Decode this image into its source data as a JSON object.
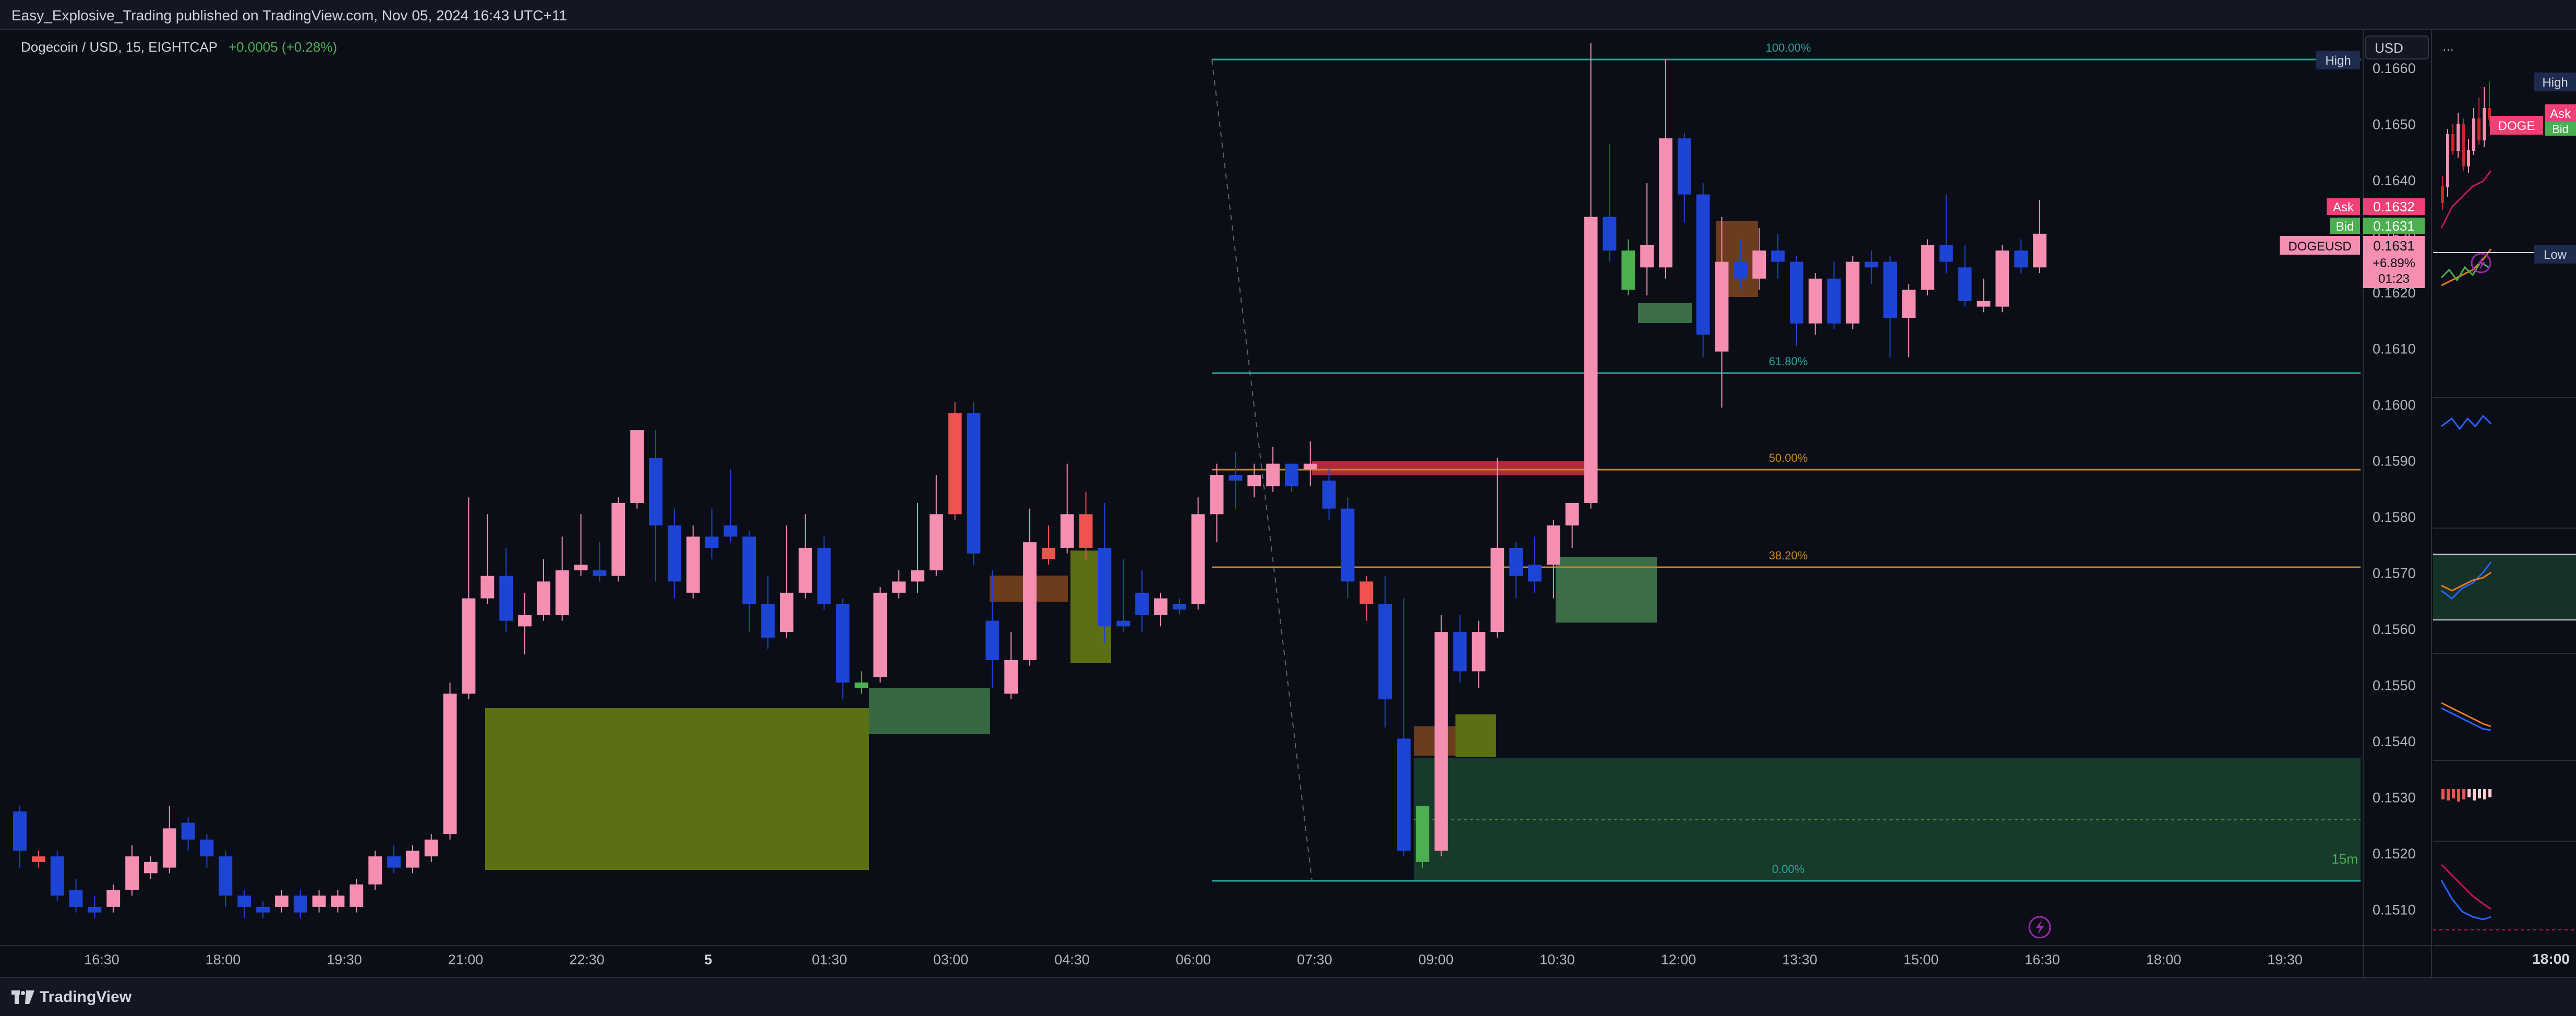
{
  "publish_line": "Easy_Explosive_Trading published on TradingView.com, Nov 05, 2024 16:43 UTC+11",
  "footer_brand": "TradingView",
  "legend": {
    "symbol_line": "Dogecoin / USD, 15, EIGHTCAP",
    "change": "+0.0005 (+0.28%)"
  },
  "currency_button": "USD",
  "colors": {
    "up": "#f48fb1",
    "down": "#1e44d6",
    "up_alt": "#ef5350",
    "down_alt": "#4caf50",
    "fib": "#26a69a",
    "fib_mid": "#c7872c",
    "zone_olive": "#5b7013",
    "zone_green": "#3b6e46",
    "background": "#0b0e17",
    "ask": "#f23f76",
    "bid": "#4caf50"
  },
  "badges": {
    "high": "High",
    "low": "Low",
    "ask_label": "Ask",
    "ask_value": "0.1632",
    "bid_label": "Bid",
    "bid_value": "0.1631",
    "symbol_label": "DOGEUSD",
    "last_value": "0.1631",
    "last_change": "+6.89%",
    "countdown": "01:23"
  },
  "fib_labels": {
    "f100": "100.00%",
    "f618": "61.80%",
    "f50": "50.00%",
    "f382": "38.20%",
    "f0": "0.00%"
  },
  "interval_badge": "15m",
  "side_panel": {
    "ask": "Ask",
    "bid": "Bid",
    "symbol_short": "DOGE",
    "high": "High",
    "low": "Low",
    "time_label": "18:00"
  },
  "chart_data": {
    "type": "candlestick",
    "title": "Dogecoin / USD, 15, EIGHTCAP",
    "x_axis_ticks": [
      "16:30",
      "18:00",
      "19:30",
      "21:00",
      "22:30",
      "5",
      "01:30",
      "03:00",
      "04:30",
      "06:00",
      "07:30",
      "09:00",
      "10:30",
      "12:00",
      "13:30",
      "15:00",
      "16:30",
      "18:00",
      "19:30"
    ],
    "y_axis_ticks": [
      "0.1660",
      "0.1650",
      "0.1640",
      "0.1630",
      "0.1620",
      "0.1610",
      "0.1600",
      "0.1590",
      "0.1580",
      "0.1570",
      "0.1560",
      "0.1550",
      "0.1540",
      "0.1530",
      "0.1520",
      "0.1510"
    ],
    "ylim": [
      0.1505,
      0.1665
    ],
    "candles": [
      [
        0.15275,
        0.15285,
        0.15205,
        0.15175,
        "down"
      ],
      [
        0.15195,
        0.15205,
        0.15185,
        0.15175,
        "alt"
      ],
      [
        0.15195,
        0.15205,
        0.15125,
        0.15115,
        "down"
      ],
      [
        0.15135,
        0.15155,
        0.15105,
        0.15095,
        "down"
      ],
      [
        0.15105,
        0.15125,
        0.15095,
        0.15085,
        "down"
      ],
      [
        0.15105,
        0.15145,
        0.15135,
        0.15095,
        "up"
      ],
      [
        0.15135,
        0.15215,
        0.15195,
        0.15125,
        "up"
      ],
      [
        0.15165,
        0.15195,
        0.15185,
        0.15155,
        "up"
      ],
      [
        0.15175,
        0.15285,
        0.15245,
        0.15165,
        "up"
      ],
      [
        0.15255,
        0.15265,
        0.15225,
        0.15205,
        "down"
      ],
      [
        0.15225,
        0.15235,
        0.15195,
        0.15175,
        "down"
      ],
      [
        0.15195,
        0.15205,
        0.15125,
        0.15105,
        "down"
      ],
      [
        0.15125,
        0.15135,
        0.15105,
        0.15085,
        "down"
      ],
      [
        0.15105,
        0.15115,
        0.15095,
        0.15085,
        "down"
      ],
      [
        0.15105,
        0.15135,
        0.15125,
        0.15095,
        "up"
      ],
      [
        0.15125,
        0.15135,
        0.15095,
        0.15085,
        "down"
      ],
      [
        0.15105,
        0.15135,
        0.15125,
        0.15095,
        "up"
      ],
      [
        0.15105,
        0.15135,
        0.15125,
        0.15095,
        "up"
      ],
      [
        0.15105,
        0.15155,
        0.15145,
        0.15095,
        "up"
      ],
      [
        0.15145,
        0.15205,
        0.15195,
        0.15135,
        "up"
      ],
      [
        0.15195,
        0.15215,
        0.15175,
        0.15165,
        "down"
      ],
      [
        0.15175,
        0.15215,
        0.15205,
        0.15165,
        "up"
      ],
      [
        0.15195,
        0.15235,
        0.15225,
        0.15185,
        "up"
      ],
      [
        0.15235,
        0.15505,
        0.15485,
        0.15225,
        "up"
      ],
      [
        0.15485,
        0.15835,
        0.15655,
        0.15475,
        "up"
      ],
      [
        0.15655,
        0.15805,
        0.15695,
        0.15645,
        "up"
      ],
      [
        0.15695,
        0.15745,
        0.15615,
        0.15595,
        "down"
      ],
      [
        0.15605,
        0.15665,
        0.15625,
        0.15555,
        "up"
      ],
      [
        0.15625,
        0.15725,
        0.15685,
        0.15615,
        "up"
      ],
      [
        0.15625,
        0.15765,
        0.15705,
        0.15615,
        "up"
      ],
      [
        0.15705,
        0.15805,
        0.15715,
        0.15695,
        "up"
      ],
      [
        0.15705,
        0.15755,
        0.15695,
        0.15685,
        "down"
      ],
      [
        0.15695,
        0.15835,
        0.15825,
        0.15685,
        "up"
      ],
      [
        0.15825,
        0.15935,
        0.15955,
        0.15815,
        "up"
      ],
      [
        0.15905,
        0.15955,
        0.15785,
        0.15685,
        "down"
      ],
      [
        0.15785,
        0.15815,
        0.15685,
        0.15655,
        "down"
      ],
      [
        0.15665,
        0.15785,
        0.15765,
        0.15655,
        "up"
      ],
      [
        0.15765,
        0.15815,
        0.15745,
        0.15725,
        "down"
      ],
      [
        0.15785,
        0.15885,
        0.15765,
        0.15755,
        "down"
      ],
      [
        0.15765,
        0.15775,
        0.15645,
        0.15595,
        "down"
      ],
      [
        0.15645,
        0.15695,
        0.15585,
        0.15565,
        "down"
      ],
      [
        0.15595,
        0.15785,
        0.15665,
        0.15585,
        "up"
      ],
      [
        0.15665,
        0.15805,
        0.15745,
        0.15655,
        "up"
      ],
      [
        0.15745,
        0.15765,
        0.15645,
        0.15635,
        "down"
      ],
      [
        0.15645,
        0.15655,
        0.15505,
        0.15475,
        "down"
      ],
      [
        0.15505,
        0.15525,
        0.15495,
        0.15485,
        "alt_green"
      ],
      [
        0.15515,
        0.15675,
        0.15665,
        0.15505,
        "up"
      ],
      [
        0.15665,
        0.15705,
        0.15685,
        0.15655,
        "up"
      ],
      [
        0.15685,
        0.15825,
        0.15705,
        0.15665,
        "up"
      ],
      [
        0.15705,
        0.15875,
        0.15805,
        0.15695,
        "up"
      ],
      [
        0.15805,
        0.16005,
        0.15985,
        0.15795,
        "alt"
      ],
      [
        0.15985,
        0.16005,
        0.15735,
        0.15715,
        "down"
      ],
      [
        0.15615,
        0.15705,
        0.15545,
        0.15495,
        "down"
      ],
      [
        0.15545,
        0.15595,
        0.15485,
        0.15475,
        "up"
      ],
      [
        0.15545,
        0.15815,
        0.15755,
        0.15535,
        "up"
      ],
      [
        0.15745,
        0.15785,
        0.15725,
        0.15715,
        "alt"
      ],
      [
        0.15745,
        0.15895,
        0.15805,
        0.15735,
        "up"
      ],
      [
        0.15805,
        0.15845,
        0.15745,
        0.15725,
        "alt"
      ],
      [
        0.15745,
        0.15825,
        0.15605,
        0.15575,
        "down"
      ],
      [
        0.15605,
        0.15725,
        0.15615,
        0.15595,
        "down"
      ],
      [
        0.15665,
        0.15705,
        0.15625,
        0.15595,
        "down"
      ],
      [
        0.15625,
        0.15665,
        0.15655,
        0.15605,
        "up"
      ],
      [
        0.15645,
        0.15655,
        0.15635,
        0.15625,
        "down"
      ],
      [
        0.15645,
        0.15835,
        0.15805,
        0.15635,
        "up"
      ],
      [
        0.15805,
        0.15895,
        0.15875,
        0.15755,
        "up"
      ],
      [
        0.15875,
        0.15915,
        0.15865,
        0.15815,
        "down"
      ],
      [
        0.15855,
        0.15895,
        0.15875,
        0.15835,
        "up"
      ],
      [
        0.15855,
        0.15925,
        0.15895,
        0.15845,
        "up"
      ],
      [
        0.15895,
        0.15895,
        0.15855,
        0.15845,
        "down"
      ],
      [
        0.15885,
        0.15935,
        0.15895,
        0.15855,
        "up"
      ],
      [
        0.15865,
        0.15885,
        0.15815,
        0.15795,
        "down"
      ],
      [
        0.15815,
        0.15835,
        0.15685,
        0.15655,
        "down"
      ],
      [
        0.15685,
        0.15695,
        0.15645,
        0.15615,
        "alt"
      ],
      [
        0.15645,
        0.15695,
        0.15475,
        0.15425,
        "down"
      ],
      [
        0.15405,
        0.15655,
        0.15205,
        0.15195,
        "down"
      ],
      [
        0.15185,
        0.15285,
        0.15285,
        0.15175,
        "alt_green"
      ],
      [
        0.15205,
        0.15625,
        0.15595,
        0.15195,
        "up"
      ],
      [
        0.15595,
        0.15625,
        0.15525,
        0.15505,
        "down"
      ],
      [
        0.15525,
        0.15615,
        0.15595,
        0.15495,
        "up"
      ],
      [
        0.15595,
        0.15905,
        0.15745,
        0.15585,
        "up"
      ],
      [
        0.15745,
        0.15755,
        0.15695,
        0.15655,
        "down"
      ],
      [
        0.15685,
        0.15765,
        0.15715,
        0.15665,
        "down"
      ],
      [
        0.15715,
        0.15795,
        0.15785,
        0.15655,
        "up"
      ],
      [
        0.15785,
        0.15825,
        0.15825,
        0.15745,
        "up"
      ],
      [
        0.15825,
        0.16645,
        0.16335,
        0.15815,
        "up"
      ],
      [
        0.16335,
        0.16465,
        0.16275,
        0.16255,
        "down"
      ],
      [
        0.16275,
        0.16295,
        0.16205,
        0.16195,
        "alt_green"
      ],
      [
        0.16285,
        0.16395,
        0.16245,
        0.16195,
        "up"
      ],
      [
        0.16245,
        0.16615,
        0.16475,
        0.16225,
        "up"
      ],
      [
        0.16475,
        0.16485,
        0.16375,
        0.16325,
        "down"
      ],
      [
        0.16375,
        0.16395,
        0.16125,
        0.16085,
        "down"
      ],
      [
        0.16095,
        0.16335,
        0.16255,
        0.15995,
        "up"
      ],
      [
        0.16255,
        0.16295,
        0.16225,
        0.16205,
        "down"
      ],
      [
        0.16225,
        0.16315,
        0.16275,
        0.16205,
        "up"
      ],
      [
        0.16275,
        0.16305,
        0.16255,
        0.16225,
        "down"
      ],
      [
        0.16255,
        0.16265,
        0.16145,
        0.16105,
        "down"
      ],
      [
        0.16145,
        0.16235,
        0.16225,
        0.16125,
        "up"
      ],
      [
        0.16225,
        0.16255,
        0.16145,
        0.16135,
        "down"
      ],
      [
        0.16145,
        0.16265,
        0.16255,
        0.16135,
        "up"
      ],
      [
        0.16255,
        0.16275,
        0.16245,
        0.16215,
        "down"
      ],
      [
        0.16255,
        0.16265,
        0.16155,
        0.16085,
        "down"
      ],
      [
        0.16155,
        0.16215,
        0.16205,
        0.16085,
        "up"
      ],
      [
        0.16205,
        0.16295,
        0.16285,
        0.16195,
        "up"
      ],
      [
        0.16285,
        0.16375,
        0.16255,
        0.16235,
        "down"
      ],
      [
        0.16245,
        0.16285,
        0.16185,
        0.16175,
        "down"
      ],
      [
        0.16185,
        0.16225,
        0.16175,
        0.16165,
        "up"
      ],
      [
        0.16175,
        0.16285,
        0.16275,
        0.16165,
        "up"
      ],
      [
        0.16275,
        0.16295,
        0.16245,
        0.16235,
        "down"
      ],
      [
        0.16245,
        0.16365,
        0.16305,
        0.16235,
        "up"
      ]
    ]
  }
}
